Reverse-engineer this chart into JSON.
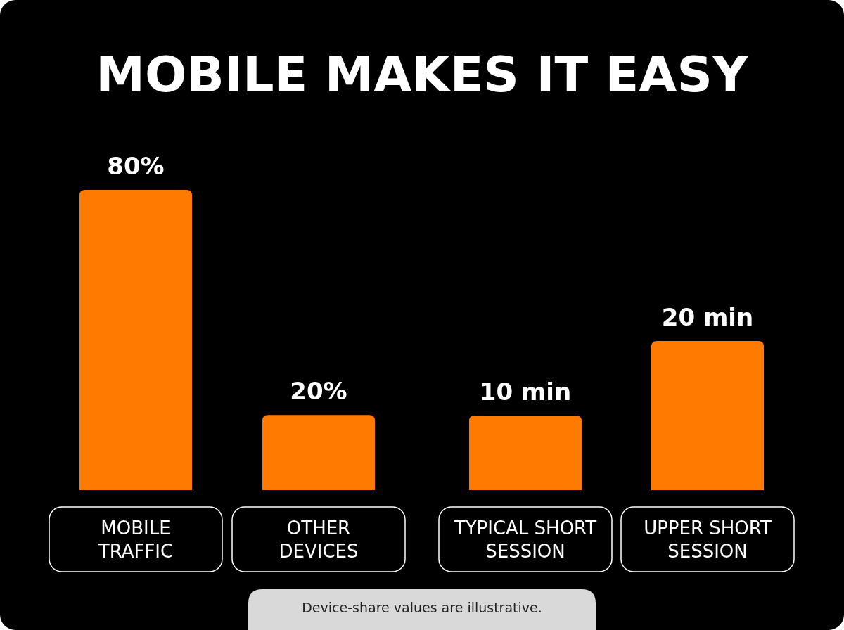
{
  "chart_data": [
    {
      "type": "bar",
      "title": "MOBILE MAKES IT EASY",
      "categories": [
        "MOBILE TRAFFIC",
        "OTHER DEVICES"
      ],
      "values": [
        80,
        20
      ],
      "color": "#ff7a00",
      "value_labels": [
        "80%",
        "20%"
      ],
      "annotations": [
        "Device-share values are illustrative."
      ]
    },
    {
      "type": "bar",
      "categories": [
        "TYPICAL SHORT SESSION",
        "UPPER SHORT SESSION"
      ],
      "values": [
        10,
        20
      ],
      "color": "#ff7a00",
      "value_labels": [
        "10 min",
        "20 min"
      ]
    }
  ]
}
